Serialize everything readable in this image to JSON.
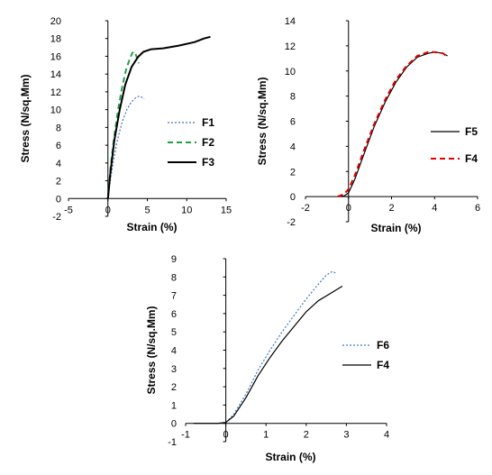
{
  "chart_data": [
    {
      "type": "line",
      "xlabel": "Strain (%)",
      "ylabel": "Stress (N/sq.Mm)",
      "xlim": [
        -5,
        15
      ],
      "ylim": [
        -2,
        20
      ],
      "xticks": [
        -5,
        0,
        5,
        10,
        15
      ],
      "yticks": [
        -2,
        0,
        2,
        4,
        6,
        8,
        10,
        12,
        14,
        16,
        18,
        20
      ],
      "legend_position": "right",
      "series": [
        {
          "name": "F1",
          "color": "#4a6fb0",
          "style": "dotted",
          "x": [
            0,
            0.3,
            0.7,
            1.2,
            1.8,
            2.4,
            3.0,
            3.5,
            3.9,
            4.3,
            4.6
          ],
          "y": [
            0,
            2.0,
            4.3,
            6.6,
            8.6,
            10.0,
            10.9,
            11.3,
            11.5,
            11.4,
            11.2
          ]
        },
        {
          "name": "F2",
          "color": "#22a04a",
          "style": "dashed",
          "x": [
            0,
            0.3,
            0.8,
            1.3,
            1.8,
            2.3,
            2.8,
            3.1,
            3.4,
            3.7,
            3.9
          ],
          "y": [
            0,
            3.2,
            7.0,
            10.0,
            12.5,
            14.5,
            15.8,
            16.4,
            16.5,
            15.8,
            15.2
          ]
        },
        {
          "name": "F3",
          "color": "#000000",
          "style": "solid",
          "x": [
            0,
            0.3,
            0.8,
            1.5,
            2.2,
            3.0,
            3.8,
            4.5,
            5.5,
            7.0,
            9.0,
            11.0,
            12.2,
            13.0
          ],
          "y": [
            0,
            2.8,
            6.5,
            10.0,
            12.8,
            14.8,
            15.9,
            16.5,
            16.8,
            16.9,
            17.2,
            17.6,
            18.0,
            18.2
          ]
        }
      ]
    },
    {
      "type": "line",
      "xlabel": "Strain (%)",
      "ylabel": "Stress (N/sq.Mm)",
      "xlim": [
        -2,
        6
      ],
      "ylim": [
        -2,
        14
      ],
      "xticks": [
        -2,
        0,
        2,
        4,
        6
      ],
      "yticks": [
        -2,
        0,
        2,
        4,
        6,
        8,
        10,
        12,
        14
      ],
      "legend_position": "right",
      "series": [
        {
          "name": "F5",
          "color": "#000000",
          "style": "solid",
          "x": [
            -0.5,
            -0.2,
            0,
            0.3,
            0.7,
            1.2,
            1.7,
            2.2,
            2.7,
            3.2,
            3.7,
            4.0,
            4.4,
            4.6
          ],
          "y": [
            0,
            0.05,
            0.3,
            1.4,
            3.3,
            5.6,
            7.5,
            9.1,
            10.3,
            11.1,
            11.4,
            11.5,
            11.4,
            11.2
          ]
        },
        {
          "name": "F4",
          "color": "#e00000",
          "style": "dashed",
          "x": [
            -0.5,
            -0.2,
            0,
            0.3,
            0.7,
            1.2,
            1.7,
            2.2,
            2.7,
            3.2,
            3.7,
            4.0,
            4.4,
            4.6
          ],
          "y": [
            0,
            0.2,
            0.6,
            1.7,
            3.6,
            5.8,
            7.7,
            9.3,
            10.4,
            11.2,
            11.5,
            11.5,
            11.4,
            11.1
          ]
        }
      ]
    },
    {
      "type": "line",
      "xlabel": "Strain (%)",
      "ylabel": "Stress (N/sq.Mm)",
      "xlim": [
        -1,
        4
      ],
      "ylim": [
        -1,
        9
      ],
      "xticks": [
        -1,
        0,
        1,
        2,
        3,
        4
      ],
      "yticks": [
        -1,
        0,
        1,
        2,
        3,
        4,
        5,
        6,
        7,
        8,
        9
      ],
      "legend_position": "right",
      "series": [
        {
          "name": "F6",
          "color": "#3a7fc0",
          "style": "dotted",
          "x": [
            -0.8,
            -0.5,
            -0.2,
            0,
            0.2,
            0.5,
            0.8,
            1.1,
            1.4,
            1.7,
            2.0,
            2.3,
            2.5,
            2.65,
            2.75
          ],
          "y": [
            0,
            0,
            0,
            0.05,
            0.5,
            1.6,
            2.9,
            4.0,
            5.0,
            5.9,
            6.8,
            7.6,
            8.1,
            8.3,
            8.2
          ]
        },
        {
          "name": "F4",
          "color": "#000000",
          "style": "solid",
          "x": [
            -0.8,
            -0.5,
            -0.2,
            0,
            0.2,
            0.5,
            0.8,
            1.1,
            1.4,
            1.7,
            2.0,
            2.3,
            2.6,
            2.9
          ],
          "y": [
            0,
            0,
            0,
            0.05,
            0.4,
            1.4,
            2.6,
            3.6,
            4.5,
            5.3,
            6.1,
            6.7,
            7.1,
            7.5
          ]
        }
      ]
    }
  ]
}
